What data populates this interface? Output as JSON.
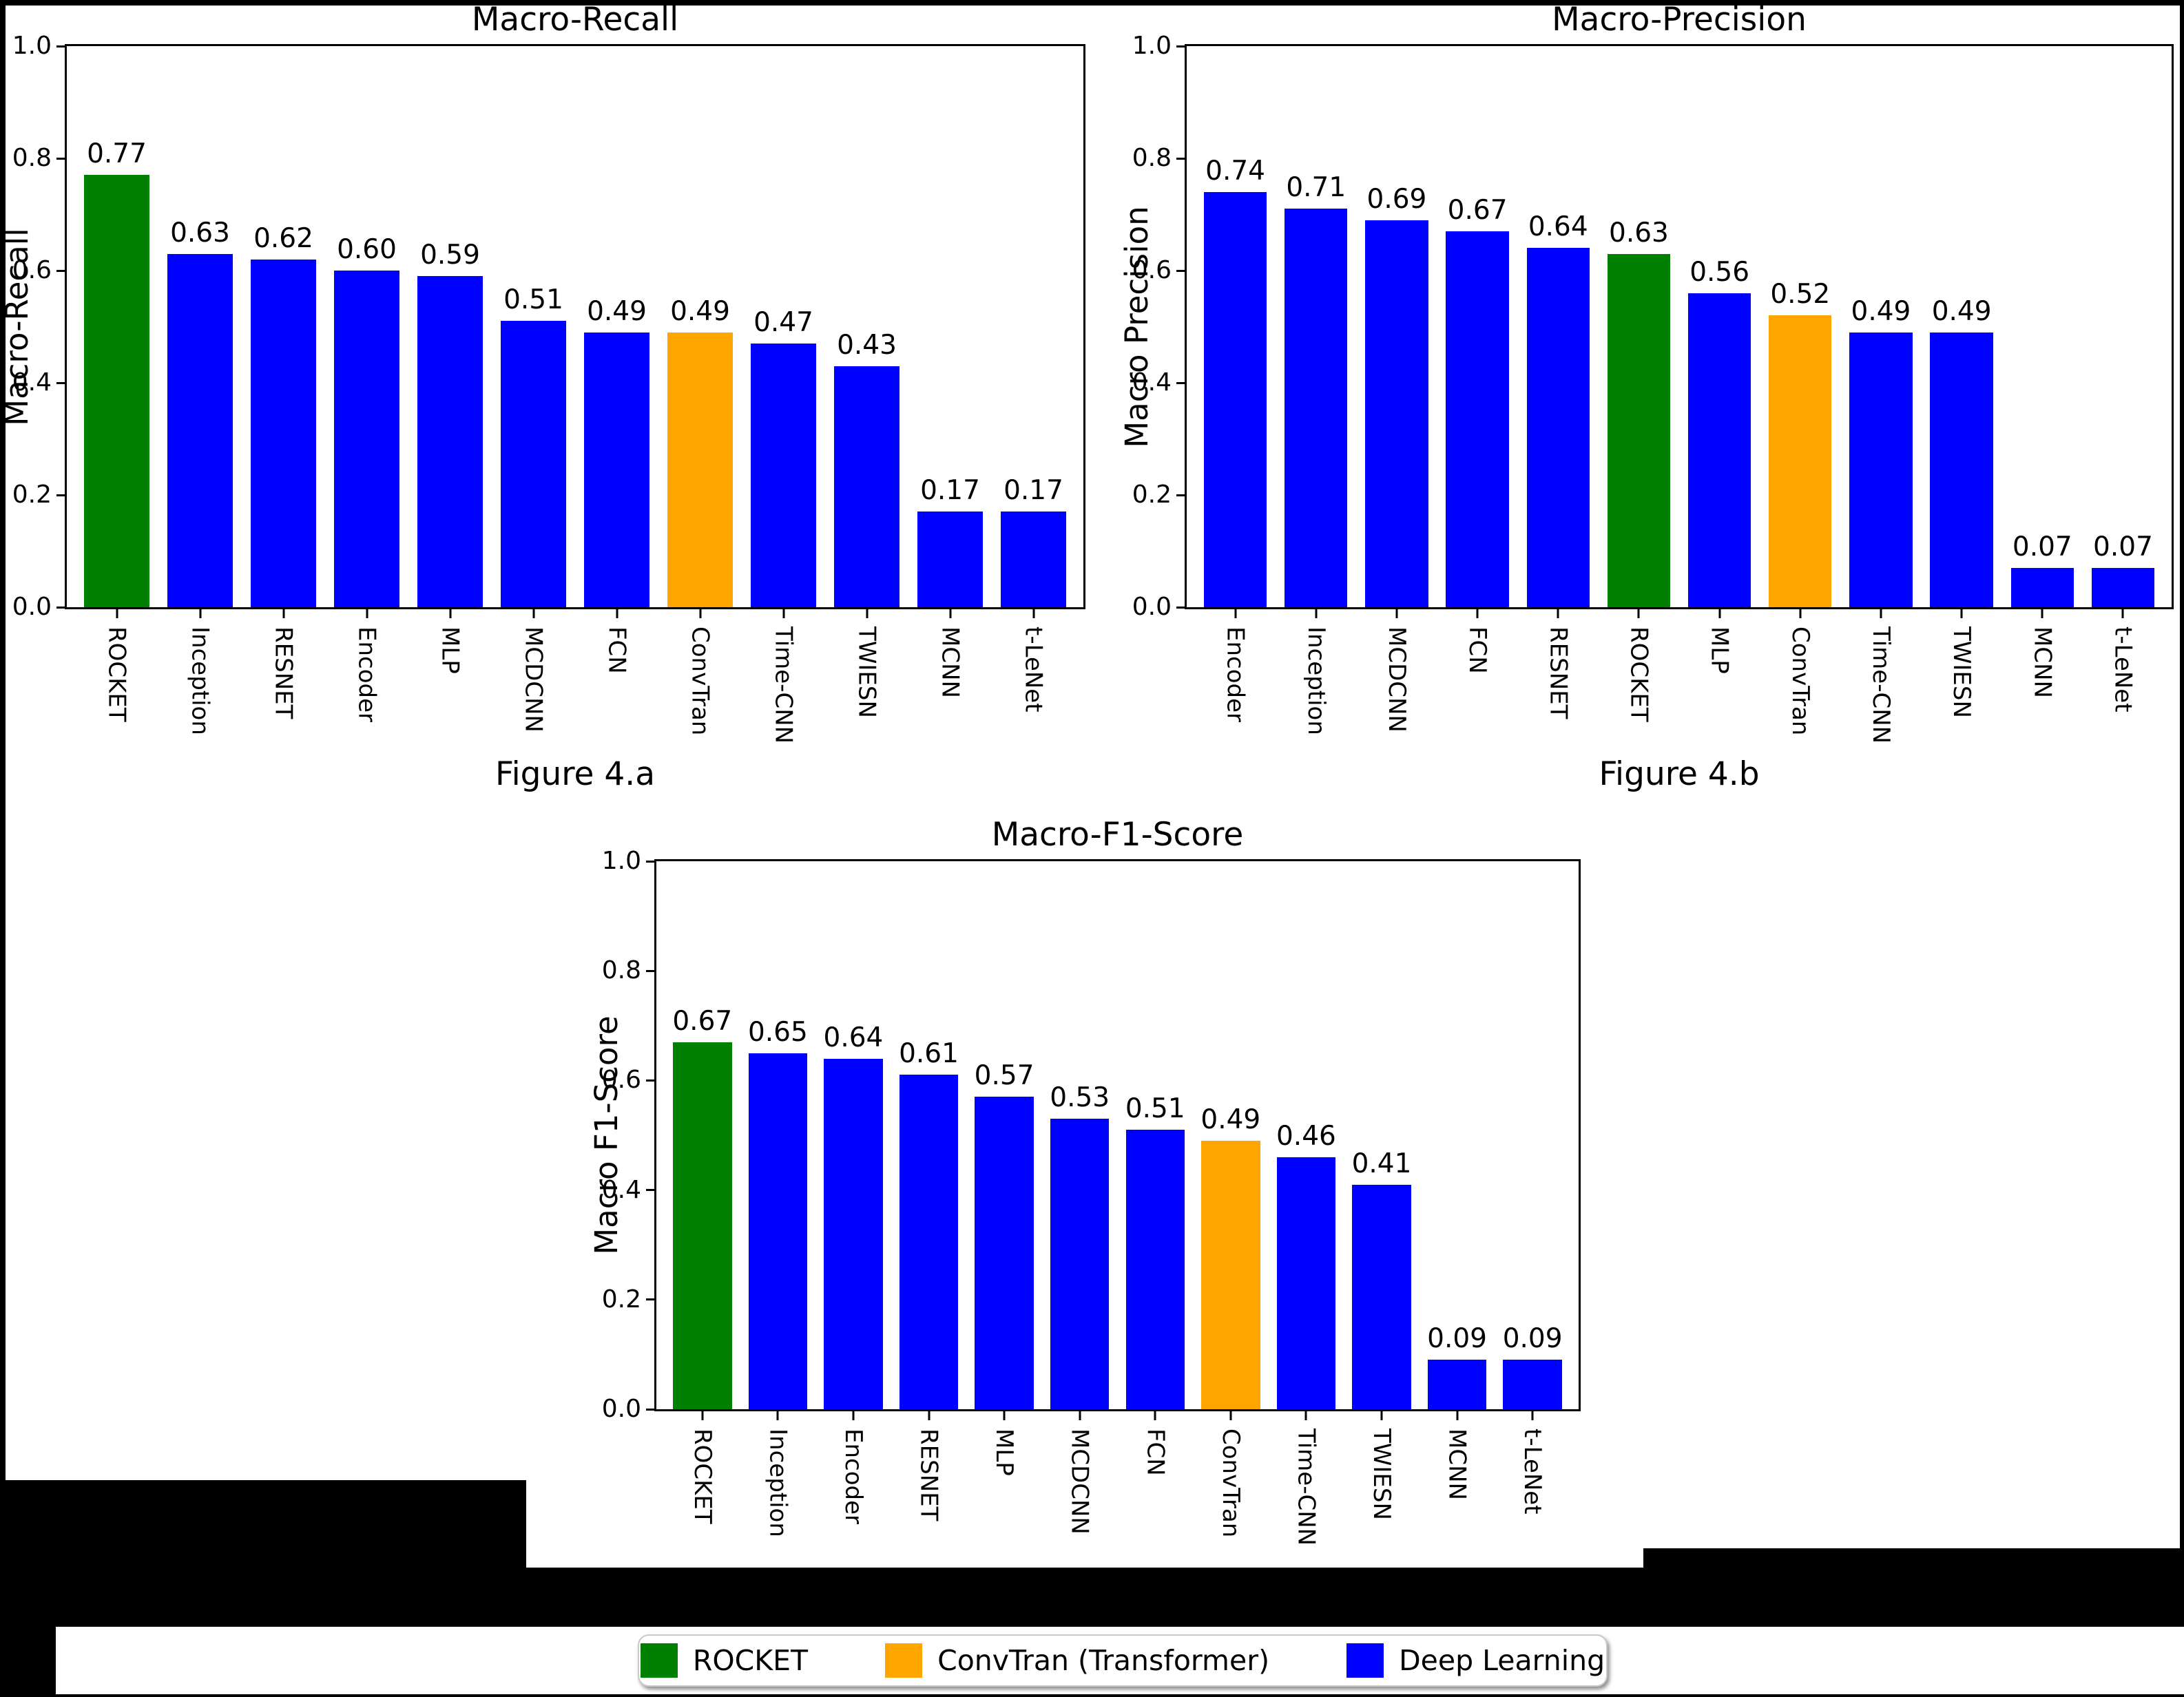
{
  "colors": {
    "rocket": "#008000",
    "convtran": "#FFA500",
    "deep_learning": "#0000FF"
  },
  "legend": {
    "items": [
      {
        "label": "ROCKET",
        "color": "rocket"
      },
      {
        "label": "ConvTran (Transformer)",
        "color": "convtran"
      },
      {
        "label": "Deep Learning",
        "color": "deep_learning"
      }
    ]
  },
  "captions": {
    "a": "Figure 4.a",
    "b": "Figure 4.b"
  },
  "chart_data": [
    {
      "type": "bar",
      "title": "Macro-Recall",
      "ylabel": "Macro-Recall",
      "caption": "Figure 4.a",
      "ylim": [
        0,
        1
      ],
      "yticks": [
        "1.0",
        "0.8",
        "0.6",
        "0.4",
        "0.2",
        "0.0"
      ],
      "grid": false,
      "categories": [
        "ROCKET",
        "Inception",
        "RESNET",
        "Encoder",
        "MLP",
        "MCDCNN",
        "FCN",
        "ConvTran",
        "Time-CNN",
        "TWIESN",
        "MCNN",
        "t-LeNet"
      ],
      "values": [
        0.77,
        0.63,
        0.62,
        0.6,
        0.59,
        0.51,
        0.49,
        0.49,
        0.47,
        0.43,
        0.17,
        0.17
      ],
      "value_labels": [
        "0.77",
        "0.63",
        "0.62",
        "0.60",
        "0.59",
        "0.51",
        "0.49",
        "0.49",
        "0.47",
        "0.43",
        "0.17",
        "0.17"
      ],
      "groups": [
        "rocket",
        "deep_learning",
        "deep_learning",
        "deep_learning",
        "deep_learning",
        "deep_learning",
        "deep_learning",
        "convtran",
        "deep_learning",
        "deep_learning",
        "deep_learning",
        "deep_learning"
      ]
    },
    {
      "type": "bar",
      "title": "Macro-Precision",
      "ylabel": "Macro Precision",
      "caption": "Figure 4.b",
      "ylim": [
        0,
        1
      ],
      "yticks": [
        "1.0",
        "0.8",
        "0.6",
        "0.4",
        "0.2",
        "0.0"
      ],
      "grid": false,
      "categories": [
        "Encoder",
        "Inception",
        "MCDCNN",
        "FCN",
        "RESNET",
        "ROCKET",
        "MLP",
        "ConvTran",
        "Time-CNN",
        "TWIESN",
        "MCNN",
        "t-LeNet"
      ],
      "values": [
        0.74,
        0.71,
        0.69,
        0.67,
        0.64,
        0.63,
        0.56,
        0.52,
        0.49,
        0.49,
        0.07,
        0.07
      ],
      "value_labels": [
        "0.74",
        "0.71",
        "0.69",
        "0.67",
        "0.64",
        "0.63",
        "0.56",
        "0.52",
        "0.49",
        "0.49",
        "0.07",
        "0.07"
      ],
      "groups": [
        "deep_learning",
        "deep_learning",
        "deep_learning",
        "deep_learning",
        "deep_learning",
        "rocket",
        "deep_learning",
        "convtran",
        "deep_learning",
        "deep_learning",
        "deep_learning",
        "deep_learning"
      ]
    },
    {
      "type": "bar",
      "title": "Macro-F1-Score",
      "ylabel": "Macro F1-Score",
      "caption": "",
      "ylim": [
        0,
        1
      ],
      "yticks": [
        "1.0",
        "0.8",
        "0.6",
        "0.4",
        "0.2",
        "0.0"
      ],
      "grid": false,
      "categories": [
        "ROCKET",
        "Inception",
        "Encoder",
        "RESNET",
        "MLP",
        "MCDCNN",
        "FCN",
        "ConvTran",
        "Time-CNN",
        "TWIESN",
        "MCNN",
        "t-LeNet"
      ],
      "values": [
        0.67,
        0.65,
        0.64,
        0.61,
        0.57,
        0.53,
        0.51,
        0.49,
        0.46,
        0.41,
        0.09,
        0.09
      ],
      "value_labels": [
        "0.67",
        "0.65",
        "0.64",
        "0.61",
        "0.57",
        "0.53",
        "0.51",
        "0.49",
        "0.46",
        "0.41",
        "0.09",
        "0.09"
      ],
      "groups": [
        "rocket",
        "deep_learning",
        "deep_learning",
        "deep_learning",
        "deep_learning",
        "deep_learning",
        "deep_learning",
        "convtran",
        "deep_learning",
        "deep_learning",
        "deep_learning",
        "deep_learning"
      ]
    }
  ]
}
